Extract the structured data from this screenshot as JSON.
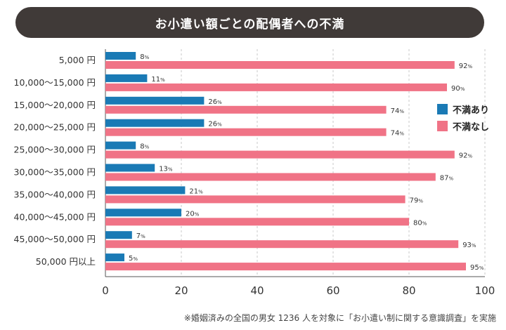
{
  "chart_data": {
    "type": "bar",
    "orientation": "horizontal",
    "title": "お小遣い額ごとの配偶者への不満",
    "categories": [
      "5,000 円",
      "10,000〜15,000 円",
      "15,000〜20,000 円",
      "20,000〜25,000 円",
      "25,000〜30,000 円",
      "30,000〜35,000 円",
      "35,000〜40,000 円",
      "40,000〜45,000 円",
      "45,000〜50,000 円",
      "50,000 円以上"
    ],
    "series": [
      {
        "name": "不満あり",
        "color": "#1a7ab5",
        "values": [
          8,
          11,
          26,
          26,
          8,
          13,
          21,
          20,
          7,
          5
        ]
      },
      {
        "name": "不満なし",
        "color": "#f07386",
        "values": [
          92,
          90,
          74,
          74,
          92,
          87,
          79,
          80,
          93,
          95
        ]
      }
    ],
    "xlim": [
      0,
      100
    ],
    "xticks": [
      0,
      20,
      40,
      60,
      80,
      100
    ],
    "grid": true,
    "value_suffix": "%",
    "legend_position": "right"
  },
  "footnote": "※婚姻済みの全国の男女 1236 人を対象に「お小遣い制に関する意識調査」を実施"
}
